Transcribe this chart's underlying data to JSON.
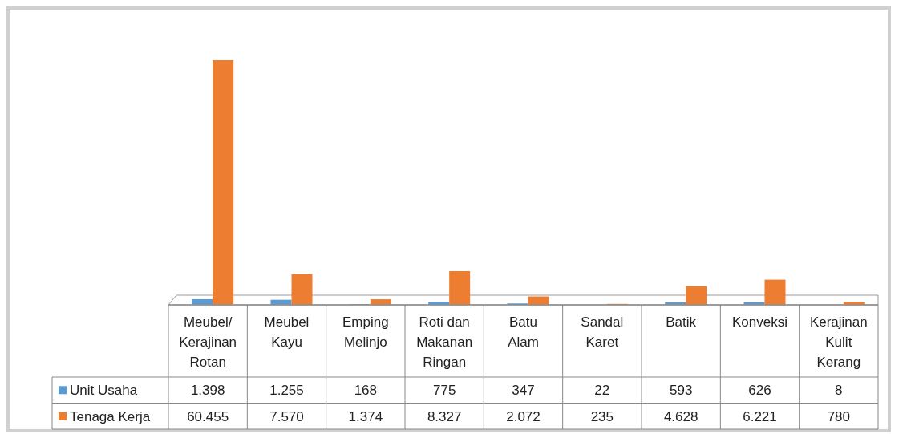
{
  "chart_data": {
    "type": "bar",
    "categories": [
      "Meubel/ Kerajinan Rotan",
      "Meubel Kayu",
      "Emping Melinjo",
      "Roti dan Makanan Ringan",
      "Batu Alam",
      "Sandal Karet",
      "Batik",
      "Konveksi",
      "Kerajinan Kulit Kerang"
    ],
    "series": [
      {
        "name": "Unit Usaha",
        "color": "#5b9bd5",
        "values": [
          1398,
          1255,
          168,
          775,
          347,
          22,
          593,
          626,
          8
        ],
        "value_labels": [
          "1.398",
          "1.255",
          "168",
          "775",
          "347",
          "22",
          "593",
          "626",
          "8"
        ]
      },
      {
        "name": "Tenaga Kerja",
        "color": "#ed7d31",
        "values": [
          60455,
          7570,
          1374,
          8327,
          2072,
          235,
          4628,
          6221,
          780
        ],
        "value_labels": [
          "60.455",
          "7.570",
          "1.374",
          "8.327",
          "2.072",
          "235",
          "4.628",
          "6.221",
          "780"
        ]
      }
    ],
    "legend": "bottom left",
    "grid": false
  }
}
